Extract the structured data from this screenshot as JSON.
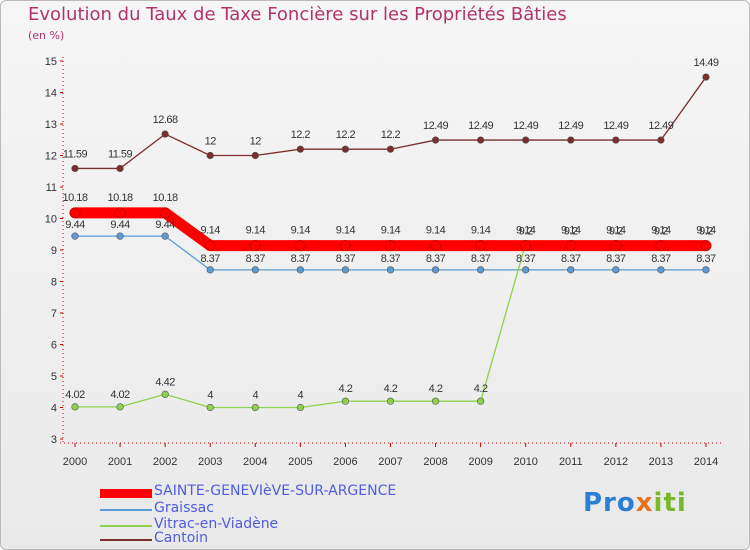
{
  "title": "Evolution du Taux de Taxe Foncière sur les Propriétés Bâties",
  "unit_label": "(en %)",
  "brand": "Proxiti",
  "chart_data": {
    "type": "line",
    "x": [
      "2000",
      "2001",
      "2002",
      "2003",
      "2004",
      "2005",
      "2006",
      "2007",
      "2008",
      "2009",
      "2010",
      "2011",
      "2012",
      "2013",
      "2014"
    ],
    "ylim": [
      3,
      15
    ],
    "yticks": [
      3,
      4,
      5,
      6,
      7,
      8,
      9,
      10,
      11,
      12,
      13,
      14,
      15
    ],
    "grid": false,
    "legend_position": "bottom",
    "series": [
      {
        "name": "SAINTE-GENEVIèVE-SUR-ARGENCE",
        "color": "#ff0000",
        "values": [
          10.18,
          10.18,
          10.18,
          9.14,
          9.14,
          9.14,
          9.14,
          9.14,
          9.14,
          9.14,
          9.14,
          9.14,
          9.14,
          9.14,
          9.14
        ],
        "labels": [
          "10.18",
          "10.18",
          "10.18",
          "9.14",
          "9.14",
          "9.14",
          "9.14",
          "9.14",
          "9.14",
          "9.14",
          "9.14",
          "9.14",
          "9.14",
          "9.14",
          "9.14"
        ]
      },
      {
        "name": "Graissac",
        "color": "#5b9bd5",
        "values": [
          9.44,
          9.44,
          9.44,
          8.37,
          8.37,
          8.37,
          8.37,
          8.37,
          8.37,
          8.37,
          8.37,
          8.37,
          8.37,
          8.37,
          8.37
        ],
        "labels": [
          "9.44",
          "9.44",
          "9.44",
          "8.37",
          "8.37",
          "8.37",
          "8.37",
          "8.37",
          "8.37",
          "8.37",
          "8.37",
          "8.37",
          "8.37",
          "8.37",
          "8.37"
        ]
      },
      {
        "name": "Vitrac-en-Viadène",
        "color": "#8fd14f",
        "values": [
          4.02,
          4.02,
          4.42,
          4,
          4,
          4,
          4.2,
          4.2,
          4.2,
          4.2,
          9.2,
          9.2,
          9.2,
          9.2,
          9.2
        ],
        "labels": [
          "4.02",
          "4.02",
          "4.42",
          "4",
          "4",
          "4",
          "4.2",
          "4.2",
          "4.2",
          "4.2",
          "9.2",
          "9.2",
          "9.2",
          "9.2",
          "9.2"
        ]
      },
      {
        "name": "Cantoin",
        "color": "#7a2e2e",
        "values": [
          11.59,
          11.59,
          12.68,
          12,
          12,
          12.2,
          12.2,
          12.2,
          12.49,
          12.49,
          12.49,
          12.49,
          12.49,
          12.49,
          14.49
        ],
        "labels": [
          "11.59",
          "11.59",
          "12.68",
          "12",
          "12",
          "12.2",
          "12.2",
          "12.2",
          "12.49",
          "12.49",
          "12.49",
          "12.49",
          "12.49",
          "12.49",
          "14.49"
        ]
      }
    ]
  }
}
